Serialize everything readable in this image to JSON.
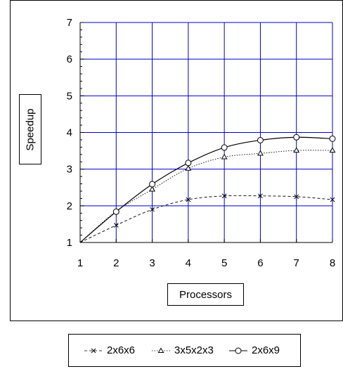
{
  "chart_data": {
    "type": "line",
    "title": "",
    "xlabel": "Processors",
    "ylabel": "Speedup",
    "x": [
      1,
      2,
      3,
      4,
      5,
      6,
      7,
      8
    ],
    "xlim": [
      1,
      8
    ],
    "ylim": [
      1,
      7
    ],
    "xticks": [
      "1",
      "2",
      "3",
      "4",
      "5",
      "6",
      "7",
      "8"
    ],
    "yticks": [
      "1",
      "2",
      "3",
      "4",
      "5",
      "6",
      "7"
    ],
    "grid": true,
    "grid_color": "#0000cc",
    "legend_position": "bottom",
    "series": [
      {
        "name": "2x6x6",
        "marker": "x",
        "line_style": "dashed",
        "values": [
          1.0,
          1.47,
          1.9,
          2.17,
          2.27,
          2.27,
          2.25,
          2.17
        ]
      },
      {
        "name": "3x5x2x3",
        "marker": "triangle",
        "line_style": "dotted",
        "values": [
          1.0,
          1.85,
          2.45,
          3.02,
          3.33,
          3.43,
          3.51,
          3.51
        ]
      },
      {
        "name": "2x6x9",
        "marker": "circle",
        "line_style": "solid",
        "values": [
          1.0,
          1.84,
          2.59,
          3.17,
          3.59,
          3.79,
          3.87,
          3.83
        ]
      }
    ]
  }
}
